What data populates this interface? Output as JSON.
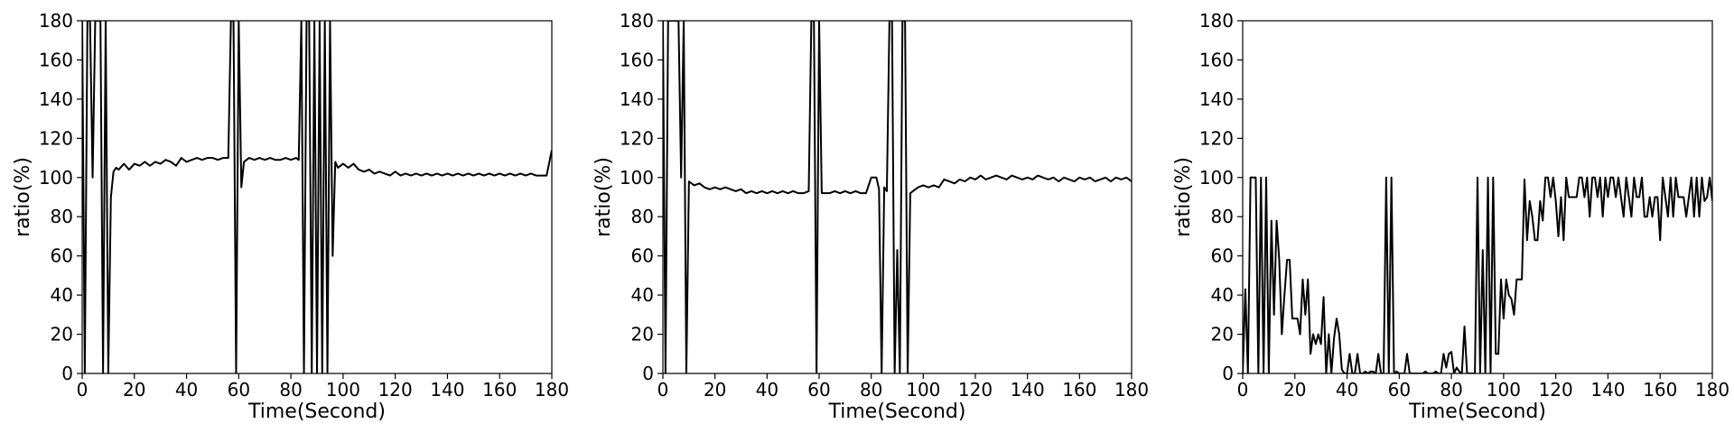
{
  "chart_data": [
    {
      "type": "line",
      "title": "",
      "xlabel": "Time(Second)",
      "ylabel": "ratio(%)",
      "xlim": [
        0,
        180
      ],
      "ylim": [
        0,
        180
      ],
      "xticks": [
        0,
        20,
        40,
        60,
        80,
        100,
        120,
        140,
        160,
        180
      ],
      "yticks": [
        0,
        20,
        40,
        60,
        80,
        100,
        120,
        140,
        160,
        180
      ],
      "grid": false,
      "series": [
        {
          "color": "#000000",
          "x": [
            0,
            1,
            2,
            3,
            4,
            5,
            6,
            7,
            8,
            9,
            10,
            11,
            12,
            13,
            14,
            16,
            18,
            20,
            22,
            24,
            26,
            28,
            30,
            32,
            34,
            36,
            38,
            40,
            42,
            44,
            46,
            48,
            50,
            52,
            54,
            56,
            57,
            58,
            59,
            60,
            61,
            62,
            64,
            66,
            68,
            70,
            72,
            74,
            76,
            78,
            80,
            82,
            83,
            84,
            85,
            86,
            87,
            88,
            89,
            90,
            91,
            92,
            93,
            94,
            95,
            96,
            97,
            98,
            100,
            102,
            104,
            106,
            108,
            110,
            112,
            114,
            116,
            118,
            120,
            122,
            124,
            126,
            128,
            130,
            132,
            134,
            136,
            138,
            140,
            142,
            144,
            146,
            148,
            150,
            152,
            154,
            156,
            158,
            160,
            162,
            164,
            166,
            168,
            170,
            172,
            174,
            176,
            178,
            180
          ],
          "y": [
            180,
            0,
            180,
            180,
            100,
            180,
            180,
            180,
            0,
            180,
            0,
            90,
            103,
            105,
            104,
            107,
            104,
            107,
            106,
            108,
            106,
            108,
            107,
            109,
            108,
            106,
            110,
            108,
            109,
            110,
            109,
            110,
            110,
            109,
            110,
            110,
            180,
            180,
            0,
            180,
            95,
            108,
            110,
            109,
            110,
            109,
            110,
            109,
            109,
            110,
            109,
            110,
            109,
            180,
            0,
            180,
            180,
            0,
            180,
            0,
            180,
            0,
            180,
            0,
            180,
            60,
            108,
            105,
            107,
            105,
            107,
            104,
            103,
            104,
            102,
            103,
            102,
            101,
            103,
            101,
            102,
            101,
            102,
            101,
            102,
            101,
            102,
            101,
            102,
            101,
            102,
            101,
            102,
            101,
            102,
            101,
            102,
            101,
            102,
            101,
            102,
            101,
            102,
            101,
            102,
            101,
            101,
            101,
            114
          ]
        }
      ]
    },
    {
      "type": "line",
      "title": "",
      "xlabel": "Time(Second)",
      "ylabel": "ratio(%)",
      "xlim": [
        0,
        180
      ],
      "ylim": [
        0,
        180
      ],
      "xticks": [
        0,
        20,
        40,
        60,
        80,
        100,
        120,
        140,
        160,
        180
      ],
      "yticks": [
        0,
        20,
        40,
        60,
        80,
        100,
        120,
        140,
        160,
        180
      ],
      "grid": false,
      "series": [
        {
          "color": "#000000",
          "x": [
            0,
            1,
            2,
            3,
            4,
            5,
            6,
            7,
            8,
            9,
            10,
            12,
            14,
            16,
            18,
            20,
            22,
            24,
            26,
            28,
            30,
            32,
            34,
            36,
            38,
            40,
            42,
            44,
            46,
            48,
            50,
            52,
            54,
            56,
            57,
            58,
            59,
            60,
            61,
            62,
            64,
            66,
            68,
            70,
            72,
            74,
            76,
            78,
            80,
            82,
            83,
            84,
            85,
            86,
            87,
            88,
            89,
            90,
            91,
            92,
            93,
            94,
            95,
            96,
            98,
            100,
            102,
            104,
            106,
            108,
            110,
            112,
            114,
            116,
            118,
            120,
            122,
            124,
            126,
            128,
            130,
            132,
            134,
            136,
            138,
            140,
            142,
            144,
            146,
            148,
            150,
            152,
            154,
            156,
            158,
            160,
            162,
            164,
            166,
            168,
            170,
            172,
            174,
            176,
            178,
            180
          ],
          "y": [
            180,
            0,
            180,
            180,
            180,
            180,
            180,
            100,
            180,
            0,
            98,
            96,
            97,
            95,
            94,
            95,
            94,
            95,
            94,
            93,
            94,
            92,
            93,
            92,
            93,
            92,
            93,
            92,
            93,
            92,
            93,
            92,
            92,
            93,
            180,
            180,
            0,
            180,
            92,
            92,
            92,
            93,
            92,
            93,
            92,
            93,
            92,
            92,
            100,
            100,
            94,
            0,
            95,
            93,
            180,
            180,
            0,
            63,
            0,
            180,
            180,
            0,
            92,
            93,
            95,
            96,
            95,
            96,
            95,
            99,
            98,
            97,
            99,
            98,
            100,
            99,
            101,
            99,
            100,
            101,
            100,
            99,
            101,
            100,
            99,
            100,
            99,
            101,
            100,
            99,
            100,
            98,
            100,
            99,
            98,
            100,
            99,
            100,
            98,
            99,
            100,
            98,
            100,
            99,
            100,
            98
          ]
        }
      ]
    },
    {
      "type": "line",
      "title": "",
      "xlabel": "Time(Second)",
      "ylabel": "ratio(%)",
      "xlim": [
        0,
        180
      ],
      "ylim": [
        0,
        180
      ],
      "xticks": [
        0,
        20,
        40,
        60,
        80,
        100,
        120,
        140,
        160,
        180
      ],
      "yticks": [
        0,
        20,
        40,
        60,
        80,
        100,
        120,
        140,
        160,
        180
      ],
      "grid": false,
      "series": [
        {
          "color": "#000000",
          "x": [
            0,
            1,
            2,
            3,
            4,
            5,
            6,
            7,
            8,
            9,
            10,
            11,
            12,
            13,
            14,
            15,
            16,
            17,
            18,
            19,
            20,
            21,
            22,
            23,
            24,
            25,
            26,
            27,
            28,
            29,
            30,
            31,
            32,
            33,
            34,
            35,
            36,
            37,
            38,
            39,
            40,
            41,
            42,
            43,
            44,
            45,
            46,
            47,
            48,
            49,
            50,
            51,
            52,
            53,
            54,
            55,
            56,
            57,
            58,
            59,
            60,
            61,
            62,
            63,
            64,
            65,
            66,
            67,
            68,
            69,
            70,
            71,
            72,
            73,
            74,
            75,
            76,
            77,
            78,
            79,
            80,
            81,
            82,
            83,
            84,
            85,
            86,
            87,
            88,
            89,
            90,
            91,
            92,
            93,
            94,
            95,
            96,
            97,
            98,
            99,
            100,
            101,
            102,
            103,
            104,
            105,
            106,
            107,
            108,
            109,
            110,
            111,
            112,
            113,
            114,
            115,
            116,
            117,
            118,
            119,
            120,
            121,
            122,
            123,
            124,
            125,
            126,
            127,
            128,
            129,
            130,
            131,
            132,
            133,
            134,
            135,
            136,
            137,
            138,
            139,
            140,
            141,
            142,
            143,
            144,
            145,
            146,
            147,
            148,
            149,
            150,
            151,
            152,
            153,
            154,
            155,
            156,
            157,
            158,
            159,
            160,
            161,
            162,
            163,
            164,
            165,
            166,
            167,
            168,
            169,
            170,
            171,
            172,
            173,
            174,
            175,
            176,
            177,
            178,
            179,
            180
          ],
          "y": [
            0,
            43,
            0,
            100,
            100,
            100,
            0,
            100,
            0,
            100,
            0,
            78,
            30,
            78,
            58,
            20,
            40,
            58,
            58,
            28,
            28,
            28,
            20,
            48,
            30,
            48,
            10,
            20,
            15,
            20,
            15,
            39,
            0,
            20,
            0,
            18,
            28,
            20,
            2,
            0,
            0,
            10,
            0,
            0,
            10,
            0,
            0,
            1,
            0,
            1,
            1,
            0,
            10,
            0,
            0,
            100,
            0,
            100,
            0,
            1,
            0,
            0,
            0,
            10,
            0,
            0,
            0,
            0,
            0,
            0,
            1,
            0,
            0,
            0,
            1,
            0,
            0,
            10,
            3,
            10,
            11,
            0,
            3,
            1,
            0,
            24,
            0,
            0,
            0,
            0,
            100,
            0,
            63,
            0,
            100,
            0,
            100,
            10,
            10,
            48,
            28,
            48,
            40,
            38,
            30,
            48,
            48,
            48,
            99,
            68,
            88,
            80,
            68,
            68,
            88,
            78,
            100,
            100,
            90,
            100,
            88,
            70,
            90,
            68,
            100,
            90,
            90,
            90,
            90,
            100,
            100,
            90,
            100,
            80,
            100,
            100,
            90,
            100,
            80,
            100,
            90,
            100,
            100,
            90,
            100,
            90,
            80,
            100,
            90,
            80,
            100,
            90,
            90,
            100,
            80,
            80,
            90,
            80,
            90,
            90,
            68,
            100,
            90,
            80,
            100,
            80,
            100,
            90,
            90,
            90,
            80,
            90,
            100,
            80,
            100,
            80,
            100,
            88,
            90,
            100,
            88
          ]
        }
      ]
    }
  ]
}
